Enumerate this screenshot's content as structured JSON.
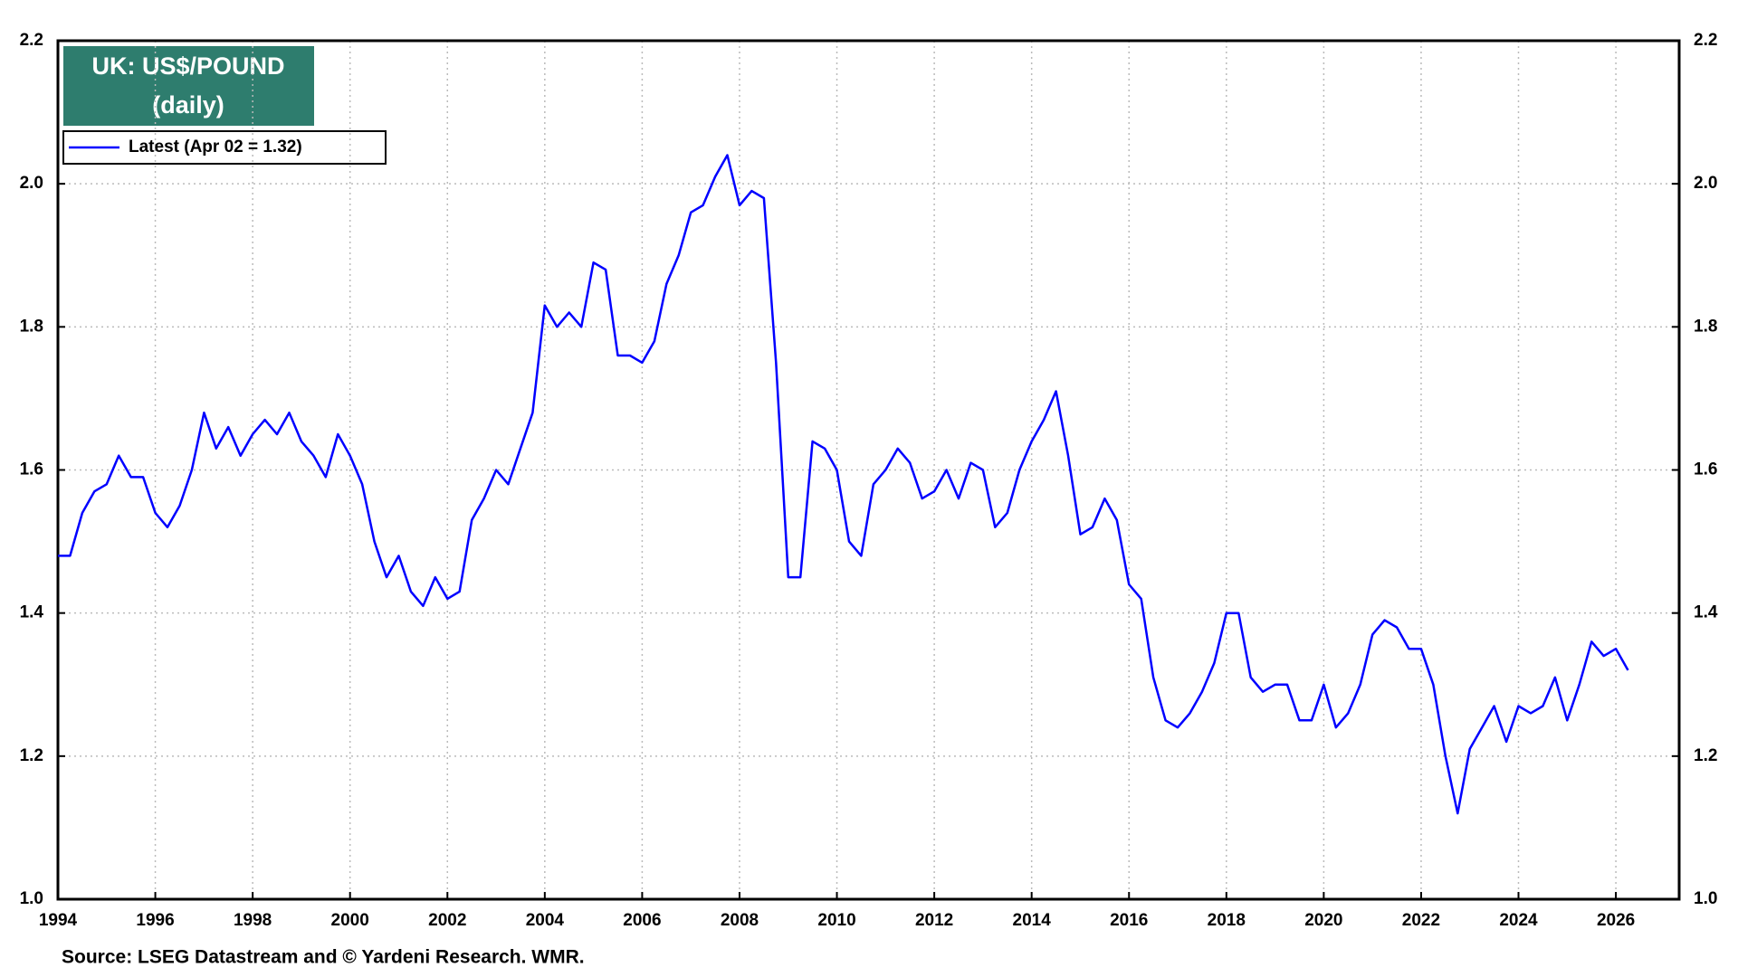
{
  "chart_data": {
    "type": "line",
    "title": "UK: US$/POUND",
    "subtitle": "(daily)",
    "source": "Source: LSEG Datastream and © Yardeni Research. WMR.",
    "x": [
      1994,
      1994.25,
      1994.5,
      1994.75,
      1995,
      1995.25,
      1995.5,
      1995.75,
      1996,
      1996.25,
      1996.5,
      1996.75,
      1997,
      1997.25,
      1997.5,
      1997.75,
      1998,
      1998.25,
      1998.5,
      1998.75,
      1999,
      1999.25,
      1999.5,
      1999.75,
      2000,
      2000.25,
      2000.5,
      2000.75,
      2001,
      2001.25,
      2001.5,
      2001.75,
      2002,
      2002.25,
      2002.5,
      2002.75,
      2003,
      2003.25,
      2003.5,
      2003.75,
      2004,
      2004.25,
      2004.5,
      2004.75,
      2005,
      2005.25,
      2005.5,
      2005.75,
      2006,
      2006.25,
      2006.5,
      2006.75,
      2007,
      2007.25,
      2007.5,
      2007.75,
      2008,
      2008.25,
      2008.5,
      2008.75,
      2009,
      2009.25,
      2009.5,
      2009.75,
      2010,
      2010.25,
      2010.5,
      2010.75,
      2011,
      2011.25,
      2011.5,
      2011.75,
      2012,
      2012.25,
      2012.5,
      2012.75,
      2013,
      2013.25,
      2013.5,
      2013.75,
      2014,
      2014.25,
      2014.5,
      2014.75,
      2015,
      2015.25,
      2015.5,
      2015.75,
      2016,
      2016.25,
      2016.5,
      2016.75,
      2017,
      2017.25,
      2017.5,
      2017.75,
      2018,
      2018.25,
      2018.5,
      2018.75,
      2019,
      2019.25,
      2019.5,
      2019.75,
      2020,
      2020.25,
      2020.5,
      2020.75,
      2021,
      2021.25,
      2021.5,
      2021.75,
      2022,
      2022.25,
      2022.5,
      2022.75,
      2023,
      2023.25,
      2023.5,
      2023.75,
      2024,
      2024.25,
      2024.5,
      2024.75,
      2025,
      2025.25,
      2025.5,
      2025.75,
      2026,
      2026.25
    ],
    "series": [
      {
        "name": "Latest (Apr 02 = 1.32)",
        "color": "#0000ff",
        "values": [
          1.48,
          1.48,
          1.54,
          1.57,
          1.58,
          1.62,
          1.59,
          1.59,
          1.54,
          1.52,
          1.55,
          1.6,
          1.68,
          1.63,
          1.66,
          1.62,
          1.65,
          1.67,
          1.65,
          1.68,
          1.64,
          1.62,
          1.59,
          1.65,
          1.62,
          1.58,
          1.5,
          1.45,
          1.48,
          1.43,
          1.41,
          1.45,
          1.42,
          1.43,
          1.53,
          1.56,
          1.6,
          1.58,
          1.63,
          1.68,
          1.83,
          1.8,
          1.82,
          1.8,
          1.89,
          1.88,
          1.76,
          1.76,
          1.75,
          1.78,
          1.86,
          1.9,
          1.96,
          1.97,
          2.01,
          2.04,
          1.97,
          1.99,
          1.98,
          1.75,
          1.45,
          1.45,
          1.64,
          1.63,
          1.6,
          1.5,
          1.48,
          1.58,
          1.6,
          1.63,
          1.61,
          1.56,
          1.57,
          1.6,
          1.56,
          1.61,
          1.6,
          1.52,
          1.54,
          1.6,
          1.64,
          1.67,
          1.71,
          1.62,
          1.51,
          1.52,
          1.56,
          1.53,
          1.44,
          1.42,
          1.31,
          1.25,
          1.24,
          1.26,
          1.29,
          1.33,
          1.4,
          1.4,
          1.31,
          1.29,
          1.3,
          1.3,
          1.25,
          1.25,
          1.3,
          1.24,
          1.26,
          1.3,
          1.37,
          1.39,
          1.38,
          1.35,
          1.35,
          1.3,
          1.2,
          1.12,
          1.21,
          1.24,
          1.27,
          1.22,
          1.27,
          1.26,
          1.27,
          1.31,
          1.25,
          1.3,
          1.36,
          1.34,
          1.35,
          1.32
        ]
      }
    ],
    "xlim": [
      1994,
      2027.3
    ],
    "xticks": [
      1994,
      1996,
      1998,
      2000,
      2002,
      2004,
      2006,
      2008,
      2010,
      2012,
      2014,
      2016,
      2018,
      2020,
      2022,
      2024,
      2026
    ],
    "ylim": [
      1,
      2.2
    ],
    "yticks": [
      {
        "value": 1,
        "label": "1.0"
      },
      1.2,
      1.4,
      1.6,
      1.8,
      {
        "value": 2,
        "label": "2.0"
      },
      2.2
    ],
    "grid": true
  }
}
